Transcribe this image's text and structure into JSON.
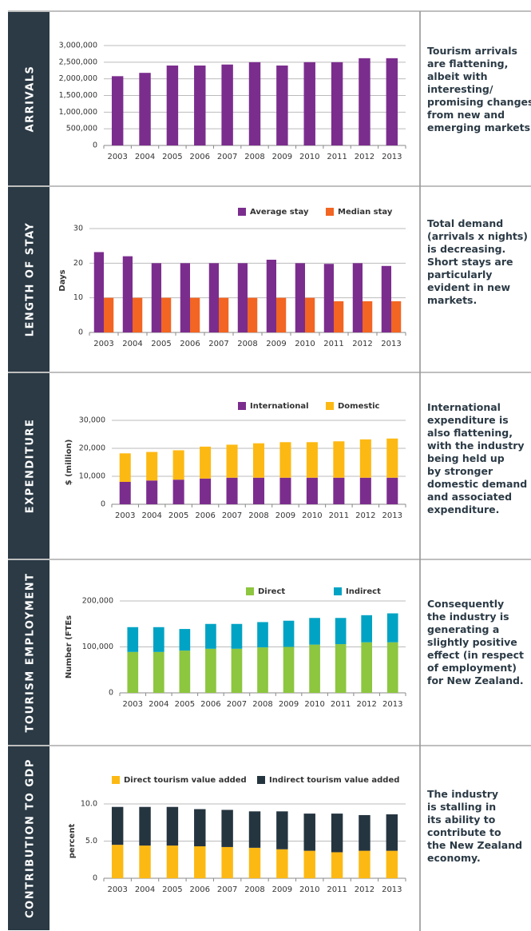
{
  "chart_data": [
    {
      "type": "bar",
      "section": "ARRIVALS",
      "note": [
        "Tourism arrivals",
        "are flattening,",
        "albeit with",
        "interesting/",
        "promising changes",
        "from new and",
        "emerging markets."
      ],
      "categories": [
        "2003",
        "2004",
        "2005",
        "2006",
        "2007",
        "2008",
        "2009",
        "2010",
        "2011",
        "2012",
        "2013"
      ],
      "values": [
        2080000,
        2180000,
        2400000,
        2400000,
        2430000,
        2500000,
        2400000,
        2500000,
        2500000,
        2620000,
        2620000
      ],
      "color": "#7b2d8e",
      "ylim": [
        0,
        3000000
      ],
      "yticks": [
        0,
        {
          "value": 500000,
          "label": "500,000"
        },
        {
          "value": 1000000,
          "label": "1,000,000"
        },
        {
          "value": 1500000,
          "label": "1,500,000"
        },
        {
          "value": 2000000,
          "label": "2,000,000"
        },
        {
          "value": 2500000,
          "label": "2,500,000"
        },
        {
          "value": 3000000,
          "label": "3,000,000"
        }
      ],
      "grid": true
    },
    {
      "type": "bar",
      "section": "LENGTH OF STAY",
      "note": [
        "Total demand",
        "(arrivals x nights)",
        "is decreasing.",
        "Short stays are",
        "particularly",
        "evident in new",
        "markets."
      ],
      "y_label": "Days",
      "categories": [
        "2003",
        "2004",
        "2005",
        "2006",
        "2007",
        "2008",
        "2009",
        "2010",
        "2011",
        "2012",
        "2013"
      ],
      "series": [
        {
          "name": "Average stay",
          "color": "#7b2d8e",
          "values": [
            23.2,
            22,
            20,
            20,
            20,
            20,
            21,
            20,
            19.8,
            20,
            19.2
          ]
        },
        {
          "name": "Median stay",
          "color": "#f26522",
          "values": [
            10,
            10,
            10,
            10,
            10,
            10,
            10,
            10,
            9,
            9,
            9
          ]
        }
      ],
      "ylim": [
        0,
        30
      ],
      "yticks": [
        0,
        10,
        20,
        30
      ],
      "grid": true,
      "stacked": false
    },
    {
      "type": "bar",
      "section": "EXPENDITURE",
      "note": [
        "International",
        "expenditure is",
        "also flattening,",
        "with the industry",
        "being held up",
        "by stronger",
        "domestic demand",
        "and associated",
        "expenditure."
      ],
      "y_label": "$ (million)",
      "categories": [
        "2003",
        "2004",
        "2005",
        "2006",
        "2007",
        "2008",
        "2009",
        "2010",
        "2011",
        "2012",
        "2013"
      ],
      "series": [
        {
          "name": "International",
          "color": "#7b2d8e",
          "values": [
            8000,
            8500,
            8800,
            9200,
            9500,
            9500,
            9500,
            9500,
            9500,
            9500,
            9500
          ]
        },
        {
          "name": "Domestic",
          "color": "#fdb913",
          "values": [
            10200,
            10200,
            10500,
            11400,
            11800,
            12300,
            12700,
            12700,
            13000,
            13700,
            14000
          ]
        }
      ],
      "ylim": [
        0,
        30000
      ],
      "yticks": [
        0,
        {
          "value": 10000,
          "label": "10,000"
        },
        {
          "value": 20000,
          "label": "20,000"
        },
        {
          "value": 30000,
          "label": "30,000"
        }
      ],
      "grid": true,
      "stacked": true
    },
    {
      "type": "bar",
      "section": "TOURISM EMPLOYMENT",
      "note": [
        "Consequently",
        "the industry is",
        "generating a",
        "slightly positive",
        "effect (in respect",
        "of employment)",
        "for New Zealand."
      ],
      "y_label": "Number (FTEs",
      "categories": [
        "2003",
        "2004",
        "2005",
        "2006",
        "2007",
        "2008",
        "2009",
        "2010",
        "2011",
        "2012",
        "2013"
      ],
      "series": [
        {
          "name": "Direct",
          "color": "#8dc63f",
          "values": [
            89000,
            89000,
            92000,
            96000,
            96000,
            99000,
            100000,
            105000,
            106000,
            110000,
            110000
          ]
        },
        {
          "name": "Indirect",
          "color": "#00a3c4",
          "values": [
            54000,
            54000,
            47000,
            54000,
            54000,
            55000,
            57000,
            58000,
            57000,
            59000,
            63000
          ]
        }
      ],
      "ylim": [
        0,
        200000
      ],
      "yticks": [
        0,
        {
          "value": 100000,
          "label": "100,000"
        },
        {
          "value": 200000,
          "label": "200,000"
        }
      ],
      "grid": true,
      "stacked": true
    },
    {
      "type": "bar",
      "section": "CONTRIBUTION TO GDP",
      "note": [
        "The industry",
        "is stalling in",
        "its ability to",
        "contribute to",
        "the New Zealand",
        "economy."
      ],
      "y_label": "percent",
      "categories": [
        "2003",
        "2004",
        "2005",
        "2006",
        "2007",
        "2008",
        "2009",
        "2010",
        "2011",
        "2012",
        "2013"
      ],
      "series": [
        {
          "name": "Direct tourism value added",
          "color": "#fdb913",
          "values": [
            4.5,
            4.4,
            4.4,
            4.3,
            4.2,
            4.1,
            3.9,
            3.7,
            3.5,
            3.7,
            3.7
          ]
        },
        {
          "name": "Indirect tourism value added",
          "color": "#253540",
          "values": [
            5.1,
            5.2,
            5.2,
            5.0,
            5.0,
            4.9,
            5.1,
            5.0,
            5.2,
            4.8,
            4.9
          ]
        }
      ],
      "ylim": [
        0,
        10
      ],
      "yticks": [
        0,
        {
          "value": 5,
          "label": "5.0"
        },
        {
          "value": 10,
          "label": "10.0"
        }
      ],
      "grid": true,
      "stacked": true
    }
  ]
}
